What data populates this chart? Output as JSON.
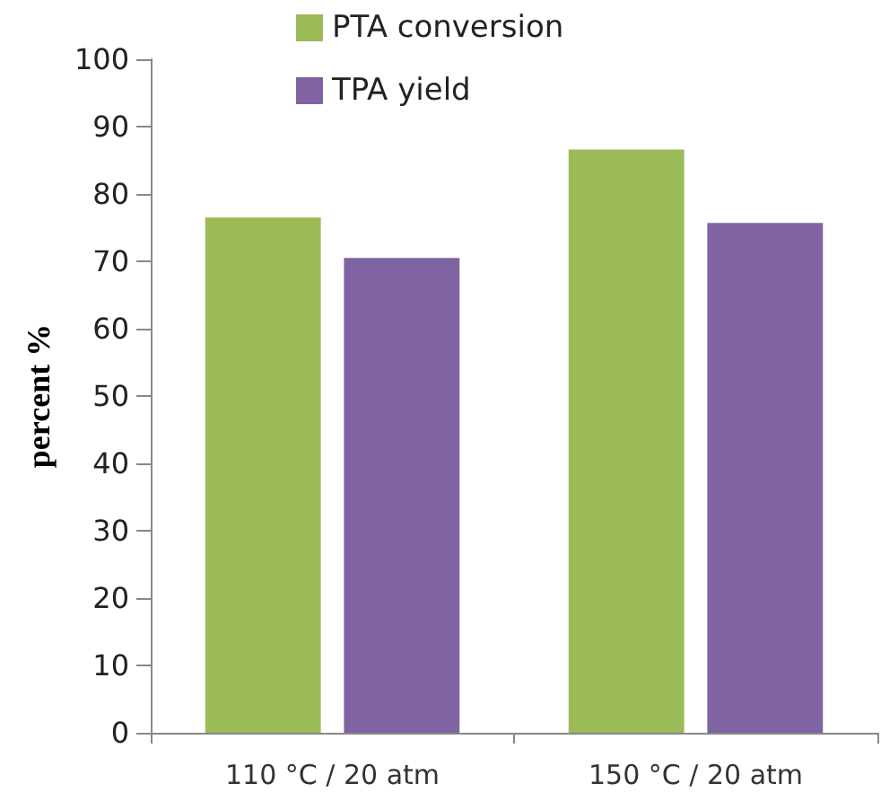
{
  "chart_data": {
    "type": "bar",
    "ylabel": "percent %",
    "categories": [
      "110 °C / 20 atm",
      "150 °C / 20 atm"
    ],
    "series": [
      {
        "name": "PTA conversion",
        "color": "#9bbb59",
        "values": [
          76.5,
          86.6
        ]
      },
      {
        "name": "TPA yield",
        "color": "#8064a2",
        "values": [
          70.5,
          75.7
        ]
      }
    ],
    "ylim": [
      0,
      100
    ],
    "yticks": [
      0,
      10,
      20,
      30,
      40,
      50,
      60,
      70,
      80,
      90,
      100
    ],
    "grid": false,
    "legend": "top"
  }
}
